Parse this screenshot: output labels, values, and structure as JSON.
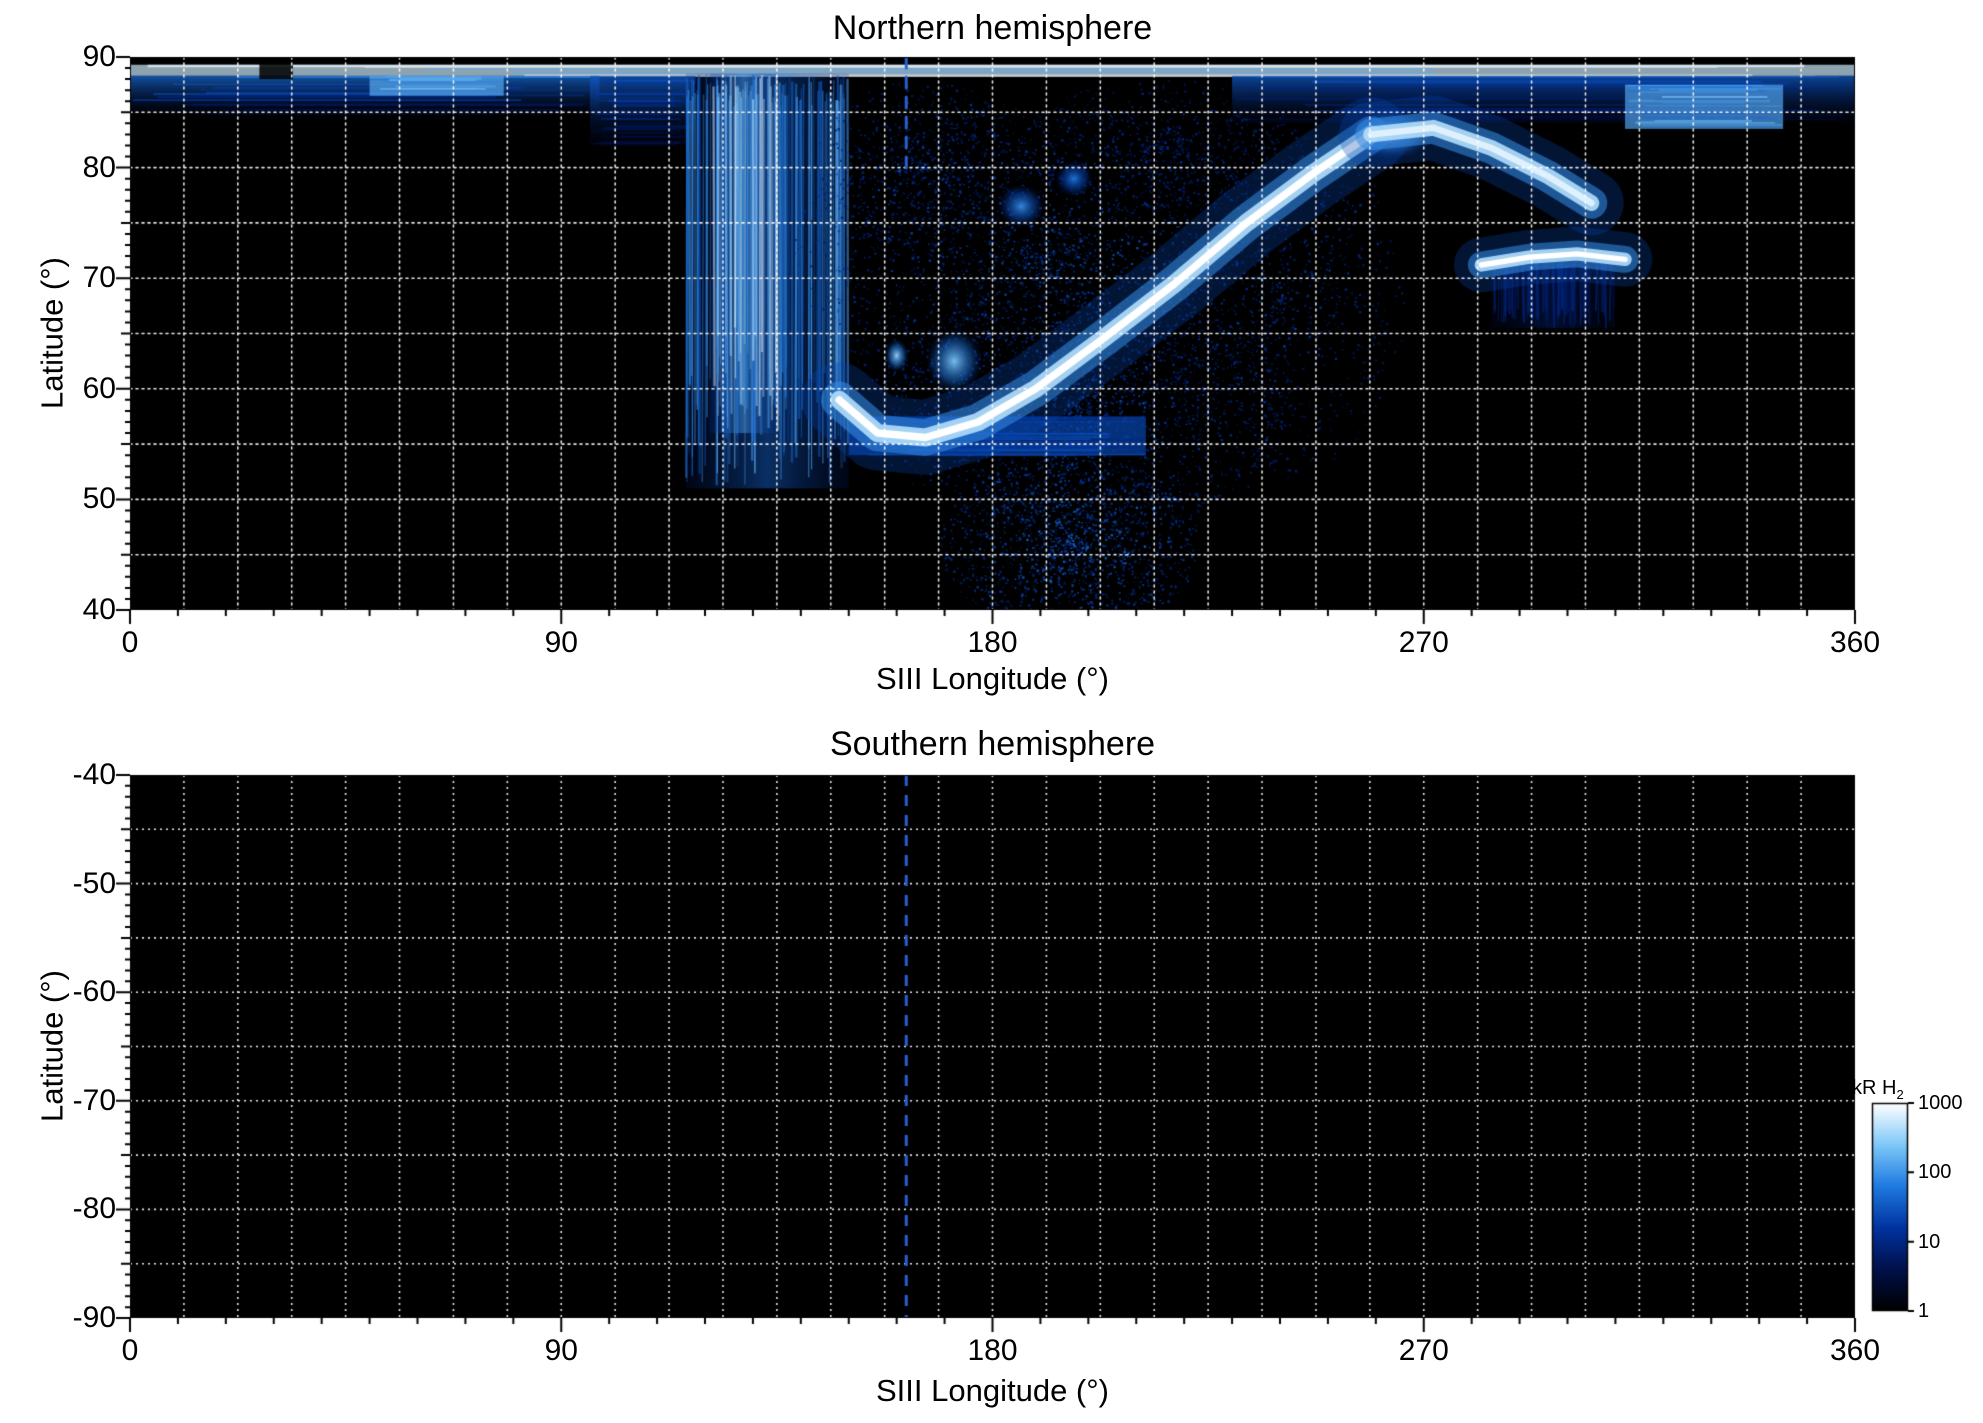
{
  "chart_data": {
    "type": "heatmap",
    "layout": {
      "page_background": "#ffffff",
      "plot_background": "#000000",
      "grid_color": "#ffffff",
      "axis_color": "#000000",
      "colorbar_position": "right-of-south-panel"
    },
    "panels": [
      {
        "id": "north",
        "title": "Northern hemisphere",
        "xlabel": "SIII Longitude (°)",
        "ylabel": "Latitude (°)",
        "xlim": [
          0,
          360
        ],
        "ylim": [
          40,
          90
        ],
        "xticks": [
          0,
          90,
          180,
          270,
          360
        ],
        "yticks": [
          90,
          80,
          70,
          60,
          50,
          40
        ],
        "grid": {
          "x_step_deg": 11.25,
          "y_step_deg": 5,
          "style": "dotted",
          "color": "#ffffff"
        },
        "meridian_line": {
          "longitude": 162,
          "style": "dashed",
          "color": "#2a5fd0",
          "lat_range": [
            79.5,
            90
          ]
        },
        "features": [
          {
            "type": "hband",
            "lon0": 0,
            "lon1": 360,
            "lat0": 88.3,
            "lat1": 89.3,
            "intensity": 0.92
          },
          {
            "type": "hband",
            "lon0": 0,
            "lon1": 98,
            "lat0": 84.8,
            "lat1": 88.3,
            "intensity": 0.55,
            "fade": "down"
          },
          {
            "type": "hband",
            "lon0": 50,
            "lon1": 78,
            "lat0": 86.5,
            "lat1": 88.3,
            "intensity": 0.72
          },
          {
            "type": "hband",
            "lon0": 96,
            "lon1": 118,
            "lat0": 82.0,
            "lat1": 88.3,
            "intensity": 0.5,
            "fade": "down"
          },
          {
            "type": "hband",
            "lon0": 230,
            "lon1": 360,
            "lat0": 84.0,
            "lat1": 88.3,
            "intensity": 0.5,
            "fade": "down"
          },
          {
            "type": "hband",
            "lon0": 312,
            "lon1": 345,
            "lat0": 83.5,
            "lat1": 87.5,
            "intensity": 0.7
          },
          {
            "type": "dark",
            "lon0": 27,
            "lon1": 34,
            "lat0": 88.0,
            "lat1": 90,
            "alpha": 0.85
          },
          {
            "type": "vswath",
            "lon0": 116,
            "lon1": 150,
            "lat0": 51,
            "lat1": 88.5,
            "intensity": 0.62
          },
          {
            "type": "vswath",
            "lon0": 121,
            "lon1": 135,
            "lat0": 56,
            "lat1": 88.5,
            "intensity": 0.8
          },
          {
            "type": "speckle",
            "lon": 190,
            "lat": 72,
            "rlon": 52,
            "rlat": 14,
            "n": 2600,
            "imin": 0.22,
            "imax": 0.55
          },
          {
            "type": "speckle",
            "lon": 198,
            "lat": 58,
            "rlon": 45,
            "rlat": 11,
            "n": 2200,
            "imin": 0.22,
            "imax": 0.55
          },
          {
            "type": "speckle",
            "lon": 196,
            "lat": 46,
            "rlon": 27,
            "rlat": 8,
            "n": 1700,
            "imin": 0.28,
            "imax": 0.62
          },
          {
            "type": "speckle",
            "lon": 240,
            "lat": 68,
            "rlon": 26,
            "rlat": 16,
            "n": 1100,
            "imin": 0.2,
            "imax": 0.5
          },
          {
            "type": "speckle",
            "lon": 165,
            "lat": 80,
            "rlon": 22,
            "rlat": 8,
            "n": 800,
            "imin": 0.22,
            "imax": 0.5
          },
          {
            "type": "speckle",
            "lon": 215,
            "lat": 82,
            "rlon": 30,
            "rlat": 6,
            "n": 700,
            "imin": 0.2,
            "imax": 0.45
          },
          {
            "type": "hband",
            "lon0": 150,
            "lon1": 212,
            "lat0": 54,
            "lat1": 57.5,
            "intensity": 0.45
          },
          {
            "type": "blob",
            "lon": 172,
            "lat": 62.5,
            "rlon": 6,
            "rlat": 3,
            "intensity": 0.8
          },
          {
            "type": "blob",
            "lon": 160,
            "lat": 63,
            "rlon": 2.5,
            "rlat": 1.5,
            "intensity": 0.85
          },
          {
            "type": "blob",
            "lon": 186,
            "lat": 76.5,
            "rlon": 5,
            "rlat": 2,
            "intensity": 0.65
          },
          {
            "type": "blob",
            "lon": 197,
            "lat": 79,
            "rlon": 4,
            "rlat": 1.7,
            "intensity": 0.6
          },
          {
            "type": "blob",
            "lon": 263,
            "lat": 83,
            "rlon": 9,
            "rlat": 2.3,
            "intensity": 0.95
          },
          {
            "type": "arc",
            "points": [
              [
                148,
                59
              ],
              [
                156,
                56
              ],
              [
                166,
                55.6
              ],
              [
                177,
                57
              ],
              [
                189,
                60
              ],
              [
                203,
                64.5
              ],
              [
                218,
                69.5
              ],
              [
                233,
                75
              ],
              [
                247,
                79.5
              ],
              [
                259,
                83
              ]
            ],
            "width": 1.5,
            "intensity": 1
          },
          {
            "type": "arc",
            "points": [
              [
                259,
                83
              ],
              [
                272,
                83.6
              ],
              [
                284,
                81.8
              ],
              [
                296,
                79.2
              ],
              [
                305,
                76.8
              ]
            ],
            "width": 1.3,
            "intensity": 0.95
          },
          {
            "type": "vswath",
            "lon0": 284,
            "lon1": 310,
            "lat0": 65.5,
            "lat1": 71.5,
            "intensity": 0.32
          },
          {
            "type": "arc",
            "points": [
              [
                282,
                71.2
              ],
              [
                292,
                71.9
              ],
              [
                302,
                72.2
              ],
              [
                312,
                71.7
              ]
            ],
            "width": 1.1,
            "intensity": 1
          }
        ]
      },
      {
        "id": "south",
        "title": "Southern hemisphere",
        "xlabel": "SIII Longitude (°)",
        "ylabel": "Latitude (°)",
        "xlim": [
          0,
          360
        ],
        "ylim": [
          -90,
          -40
        ],
        "xticks": [
          0,
          90,
          180,
          270,
          360
        ],
        "yticks": [
          -40,
          -50,
          -60,
          -70,
          -80,
          -90
        ],
        "grid": {
          "x_step_deg": 11.25,
          "y_step_deg": 5,
          "style": "dotted",
          "color": "#ffffff"
        },
        "meridian_line": {
          "longitude": 162,
          "style": "dashed",
          "color": "#2a5fd0",
          "lat_range": [
            -90,
            -40
          ]
        },
        "data_present": false,
        "features": []
      }
    ],
    "colorbar": {
      "label_main": "kR H",
      "label_sub": "2",
      "scale": "log",
      "range": [
        1,
        1000
      ],
      "ticks": [
        1000,
        100,
        10,
        1
      ],
      "stops": [
        "#000000",
        "#00104a",
        "#0033a0",
        "#1f7ae0",
        "#7ec8f8",
        "#ffffff"
      ]
    }
  }
}
